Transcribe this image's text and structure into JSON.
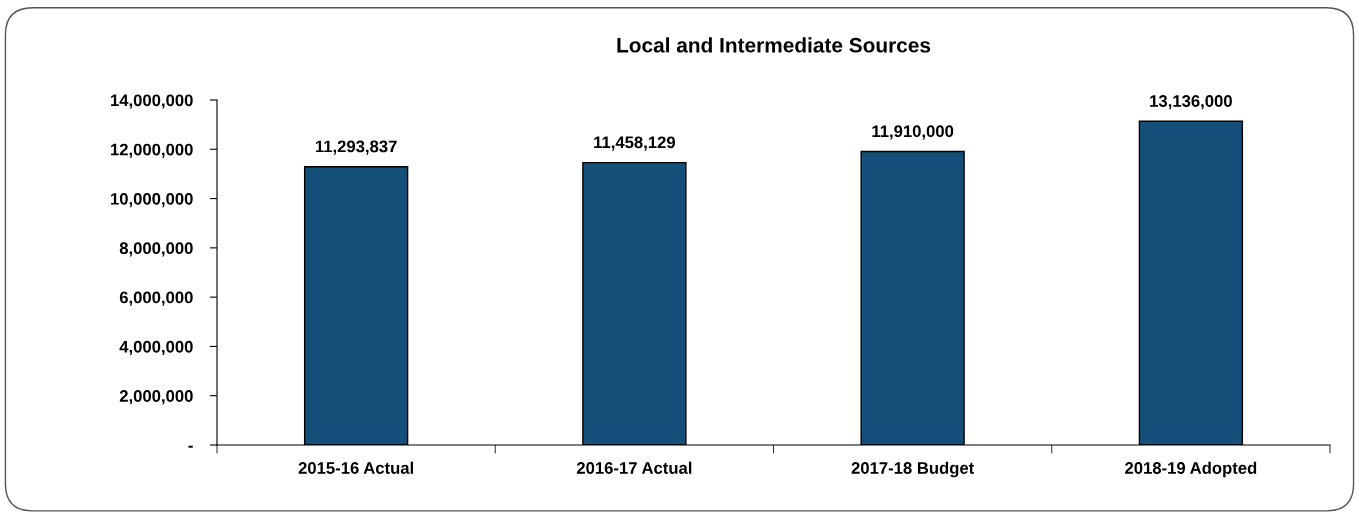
{
  "chart_data": {
    "type": "bar",
    "title": "Local and Intermediate Sources",
    "categories": [
      "2015-16 Actual",
      "2016-17 Actual",
      "2017-18 Budget",
      "2018-19 Adopted"
    ],
    "values": [
      11293837,
      11458129,
      11910000,
      13136000
    ],
    "color": "#14507a",
    "ylim": [
      0,
      14000000
    ],
    "yticks": [
      {
        "value": 0,
        "label": "-"
      },
      {
        "value": 2000000,
        "label": "2,000,000"
      },
      {
        "value": 4000000,
        "label": "4,000,000"
      },
      {
        "value": 6000000,
        "label": "6,000,000"
      },
      {
        "value": 8000000,
        "label": "8,000,000"
      },
      {
        "value": 10000000,
        "label": "10,000,000"
      },
      {
        "value": 12000000,
        "label": "12,000,000"
      },
      {
        "value": 14000000,
        "label": "14,000,000"
      }
    ],
    "value_labels": [
      "11,293,837",
      "11,458,129",
      "11,910,000",
      "13,136,000"
    ],
    "grid": false,
    "legend": false
  }
}
